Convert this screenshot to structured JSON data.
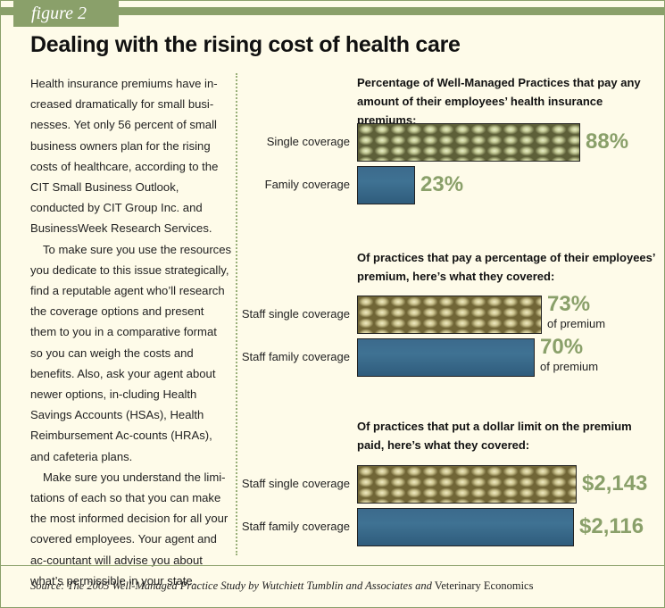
{
  "figure_label": "figure 2",
  "title": "Dealing with the rising cost of health care",
  "body_paragraphs": [
    "Health insurance premiums have in-creased dramatically for small busi-nesses. Yet only 56 percent of small business owners plan for the rising costs of healthcare, according to the CIT Small Business Outlook, conducted by CIT Group Inc. and BusinessWeek Research Services.",
    "To make sure you use the resources you dedicate to this issue strategically, find a reputable agent who’ll research the coverage options and present them to you in a comparative format so you can weigh the costs and benefits. Also, ask your agent about newer options, in-cluding Health Savings Accounts (HSAs), Health Reimbursement Ac-counts (HRAs), and cafeteria plans.",
    "Make sure you understand the limi-tations of each so that you can make the most informed decision for all your covered employees. Your agent and ac-countant will advise you about what’s permissible in your state."
  ],
  "source_italic": "Source: The 2005 Well-Managed Practice Study by Wutchiett Tumblin and Associates and",
  "source_plain": "Veterinary Economics",
  "chart_data": [
    {
      "type": "bar",
      "orientation": "horizontal",
      "title": "Percentage of Well-Managed Practices that pay any amount of their employees’ health insurance premiums:",
      "categories": [
        "Single coverage",
        "Family coverage"
      ],
      "values": [
        88,
        23
      ],
      "value_labels": [
        "88%",
        "23%"
      ],
      "value_sublabels": [
        "",
        ""
      ],
      "unit": "%",
      "xlim": [
        0,
        100
      ]
    },
    {
      "type": "bar",
      "orientation": "horizontal",
      "title": "Of practices that pay a percentage of their employees’ premium, here’s what they covered:",
      "categories": [
        "Staff single coverage",
        "Staff family coverage"
      ],
      "values": [
        73,
        70
      ],
      "value_labels": [
        "73%",
        "70%"
      ],
      "value_sublabels": [
        "of premium",
        "of premium"
      ],
      "unit": "%",
      "xlim": [
        0,
        100
      ]
    },
    {
      "type": "bar",
      "orientation": "horizontal",
      "title": "Of practices that put a dollar limit on the premium paid, here’s what they covered:",
      "categories": [
        "Staff single coverage",
        "Staff family coverage"
      ],
      "values": [
        2143,
        2116
      ],
      "value_labels": [
        "$2,143",
        "$2,116"
      ],
      "value_sublabels": [
        "",
        ""
      ],
      "unit": "$",
      "xlim": [
        0,
        2470
      ]
    }
  ]
}
